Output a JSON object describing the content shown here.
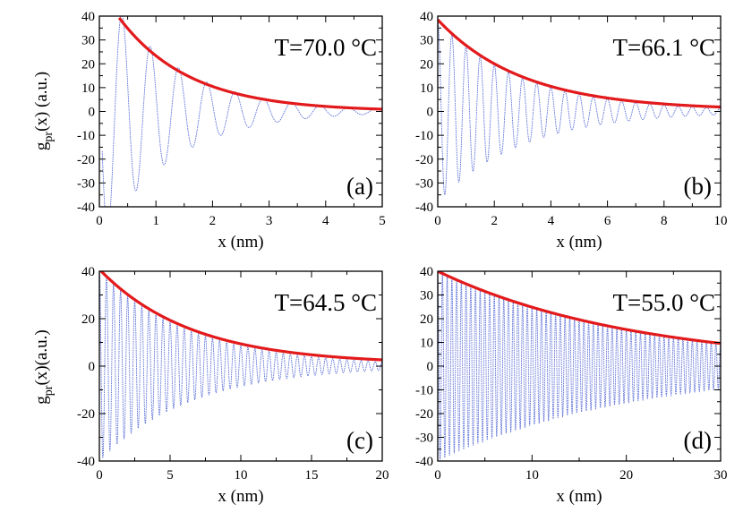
{
  "chart_data": [
    {
      "type": "line",
      "panel_label": "(a)",
      "annotation": "T=70.0 °C",
      "xlabel": "x (nm)",
      "ylabel_main": "g",
      "ylabel_sub": "pr",
      "ylabel_rest": "(x) (a.u.)",
      "xlim": [
        0,
        5
      ],
      "ylim": [
        -40,
        40
      ],
      "xticks": [
        0,
        1,
        2,
        3,
        4,
        5
      ],
      "yticks": [
        -40,
        -30,
        -20,
        -10,
        0,
        10,
        20,
        30,
        40
      ],
      "xtick_labels": [
        "0",
        "1",
        "2",
        "3",
        "4",
        "5"
      ],
      "ytick_labels": [
        "-40",
        "-30",
        "-20",
        "-10",
        "0",
        "10",
        "20",
        "30",
        "40"
      ],
      "envelope": {
        "amplitude": 52,
        "decay_length_nm": 1.25,
        "offset": 0,
        "x_start": 0.35
      },
      "oscillation": {
        "period_nm": 0.5,
        "first_peak_nm": 0.4,
        "amplitude": 56,
        "decay_length_nm": 1.25,
        "x_start": 0.05
      },
      "colors": {
        "envelope": "#e31a1c",
        "oscillation": "#5b6fd6"
      }
    },
    {
      "type": "line",
      "panel_label": "(b)",
      "annotation": "T=66.1 °C",
      "xlabel": "x (nm)",
      "ylabel_main": "",
      "ylabel_sub": "",
      "ylabel_rest": "",
      "xlim": [
        0,
        10
      ],
      "ylim": [
        -40,
        40
      ],
      "xticks": [
        0,
        2,
        4,
        6,
        8,
        10
      ],
      "yticks": [
        -40,
        -30,
        -20,
        -10,
        0,
        10,
        20,
        30,
        40
      ],
      "xtick_labels": [
        "0",
        "2",
        "4",
        "6",
        "8",
        "10"
      ],
      "ytick_labels": [
        "-40",
        "-30",
        "-20",
        "-10",
        "0",
        "10",
        "20",
        "30",
        "40"
      ],
      "envelope": {
        "amplitude": 38,
        "decay_length_nm": 3.0,
        "offset": 0.5,
        "x_start": 0.0
      },
      "oscillation": {
        "period_nm": 0.5,
        "first_peak_nm": 0.5,
        "amplitude": 38,
        "decay_length_nm": 3.0,
        "x_start": 0.0
      },
      "colors": {
        "envelope": "#e31a1c",
        "oscillation": "#5b6fd6"
      }
    },
    {
      "type": "line",
      "panel_label": "(c)",
      "annotation": "T=64.5 °C",
      "xlabel": "x (nm)",
      "ylabel_main": "g",
      "ylabel_sub": "pr",
      "ylabel_rest": "(x)(a.u.)",
      "xlim": [
        0,
        20
      ],
      "ylim": [
        -40,
        40
      ],
      "xticks": [
        0,
        5,
        10,
        15,
        20
      ],
      "yticks": [
        -40,
        -20,
        0,
        20,
        40
      ],
      "xtick_labels": [
        "0",
        "5",
        "10",
        "15",
        "20"
      ],
      "ytick_labels": [
        "-40",
        "-20",
        "0",
        "20",
        "40"
      ],
      "envelope": {
        "amplitude": 40,
        "decay_length_nm": 6.5,
        "offset": 0.8,
        "x_start": 0.0
      },
      "oscillation": {
        "period_nm": 0.5,
        "first_peak_nm": 0.5,
        "amplitude": 40,
        "decay_length_nm": 6.5,
        "x_start": 0.0
      },
      "colors": {
        "envelope": "#e31a1c",
        "oscillation": "#5b6fd6"
      }
    },
    {
      "type": "line",
      "panel_label": "(d)",
      "annotation": "T=55.0 °C",
      "xlabel": "x (nm)",
      "ylabel_main": "",
      "ylabel_sub": "",
      "ylabel_rest": "",
      "xlim": [
        0,
        30
      ],
      "ylim": [
        -40,
        40
      ],
      "xticks": [
        0,
        10,
        20,
        30
      ],
      "yticks": [
        -40,
        -30,
        -20,
        -10,
        0,
        10,
        20,
        30,
        40
      ],
      "xtick_labels": [
        "0",
        "10",
        "20",
        "30"
      ],
      "ytick_labels": [
        "-40",
        "-30",
        "-20",
        "-10",
        "0",
        "10",
        "20",
        "30",
        "40"
      ],
      "envelope": {
        "amplitude": 40,
        "decay_length_nm": 21,
        "offset": 0,
        "x_start": 0.0
      },
      "oscillation": {
        "period_nm": 0.5,
        "first_peak_nm": 0.5,
        "amplitude": 40,
        "decay_length_nm": 21,
        "x_start": 0.0
      },
      "colors": {
        "envelope": "#e31a1c",
        "oscillation": "#5b6fd6"
      }
    }
  ]
}
